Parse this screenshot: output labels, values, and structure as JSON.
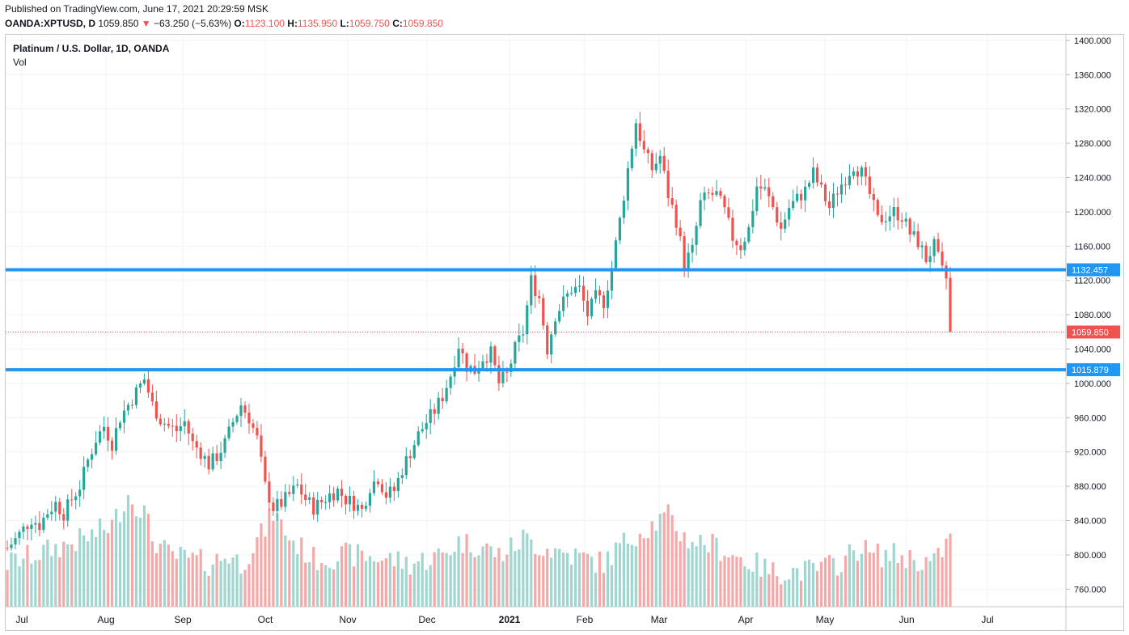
{
  "header": {
    "published": "Published on TradingView.com, June 17, 2021 20:29:59 MSK",
    "symbol": "OANDA:XPTUSD, D",
    "last": "1059.850",
    "change": "−63.250 (−5.63%)",
    "o_label": "O:",
    "o_value": "1123.100",
    "h_label": "H:",
    "h_value": "1135.950",
    "l_label": "L:",
    "l_value": "1059.750",
    "c_label": "C:",
    "c_value": "1059.850"
  },
  "legend": {
    "title": "Platinum / U.S. Dollar, 1D, OANDA",
    "vol": "Vol"
  },
  "colors": {
    "up": "#26a69a",
    "down": "#ef5350",
    "up_vol": "#9fd6cf",
    "down_vol": "#f4a9a8",
    "hline": "#2196f3",
    "grid": "#f0f3fa"
  },
  "chart_data": {
    "type": "candlestick",
    "ylim": [
      740,
      1405
    ],
    "y_ticks": [
      "1400.000",
      "1360.000",
      "1320.000",
      "1280.000",
      "1240.000",
      "1200.000",
      "1160.000",
      "1120.000",
      "1080.000",
      "1040.000",
      "1000.000",
      "960.000",
      "920.000",
      "880.000",
      "840.000",
      "800.000",
      "760.000"
    ],
    "x_ticks": [
      "Jul",
      "Aug",
      "Sep",
      "Oct",
      "Nov",
      "Dec",
      "2021",
      "Feb",
      "Mar",
      "Apr",
      "May",
      "Jun",
      "Jul"
    ],
    "horizontal_lines": [
      {
        "value": 1132.457,
        "label": "1132.457"
      },
      {
        "value": 1015.879,
        "label": "1015.879"
      }
    ],
    "last_price": {
      "value": 1059.85,
      "label": "1059.850"
    },
    "price_path": [
      [
        0,
        808
      ],
      [
        2,
        818
      ],
      [
        4,
        830
      ],
      [
        6,
        842
      ],
      [
        8,
        835
      ],
      [
        10,
        850
      ],
      [
        12,
        860
      ],
      [
        14,
        848
      ],
      [
        16,
        865
      ],
      [
        18,
        880
      ],
      [
        20,
        910
      ],
      [
        22,
        935
      ],
      [
        24,
        950
      ],
      [
        26,
        930
      ],
      [
        28,
        960
      ],
      [
        30,
        975
      ],
      [
        32,
        990
      ],
      [
        34,
        1005
      ],
      [
        36,
        975
      ],
      [
        38,
        958
      ],
      [
        40,
        950
      ],
      [
        42,
        945
      ],
      [
        44,
        955
      ],
      [
        46,
        930
      ],
      [
        48,
        920
      ],
      [
        50,
        905
      ],
      [
        52,
        915
      ],
      [
        54,
        930
      ],
      [
        56,
        955
      ],
      [
        58,
        975
      ],
      [
        60,
        960
      ],
      [
        62,
        935
      ],
      [
        64,
        880
      ],
      [
        66,
        855
      ],
      [
        68,
        860
      ],
      [
        70,
        870
      ],
      [
        72,
        880
      ],
      [
        74,
        865
      ],
      [
        76,
        855
      ],
      [
        78,
        862
      ],
      [
        80,
        870
      ],
      [
        82,
        875
      ],
      [
        84,
        865
      ],
      [
        86,
        860
      ],
      [
        88,
        852
      ],
      [
        90,
        880
      ],
      [
        92,
        890
      ],
      [
        94,
        870
      ],
      [
        96,
        875
      ],
      [
        98,
        900
      ],
      [
        100,
        920
      ],
      [
        102,
        940
      ],
      [
        104,
        955
      ],
      [
        106,
        968
      ],
      [
        108,
        985
      ],
      [
        110,
        1010
      ],
      [
        112,
        1045
      ],
      [
        114,
        1020
      ],
      [
        116,
        1015
      ],
      [
        118,
        1030
      ],
      [
        120,
        1035
      ],
      [
        122,
        1000
      ],
      [
        124,
        1010
      ],
      [
        126,
        1040
      ],
      [
        128,
        1060
      ],
      [
        130,
        1120
      ],
      [
        132,
        1100
      ],
      [
        134,
        1040
      ],
      [
        136,
        1080
      ],
      [
        138,
        1095
      ],
      [
        140,
        1110
      ],
      [
        142,
        1110
      ],
      [
        144,
        1080
      ],
      [
        146,
        1100
      ],
      [
        148,
        1095
      ],
      [
        150,
        1135
      ],
      [
        152,
        1190
      ],
      [
        154,
        1250
      ],
      [
        156,
        1305
      ],
      [
        158,
        1270
      ],
      [
        160,
        1250
      ],
      [
        162,
        1265
      ],
      [
        164,
        1220
      ],
      [
        166,
        1190
      ],
      [
        168,
        1140
      ],
      [
        170,
        1155
      ],
      [
        172,
        1210
      ],
      [
        174,
        1220
      ],
      [
        176,
        1220
      ],
      [
        178,
        1200
      ],
      [
        180,
        1170
      ],
      [
        182,
        1160
      ],
      [
        184,
        1180
      ],
      [
        186,
        1230
      ],
      [
        188,
        1225
      ],
      [
        190,
        1205
      ],
      [
        192,
        1180
      ],
      [
        194,
        1205
      ],
      [
        196,
        1215
      ],
      [
        198,
        1225
      ],
      [
        200,
        1245
      ],
      [
        202,
        1225
      ],
      [
        204,
        1205
      ],
      [
        206,
        1225
      ],
      [
        208,
        1240
      ],
      [
        210,
        1255
      ],
      [
        212,
        1245
      ],
      [
        214,
        1220
      ],
      [
        216,
        1190
      ],
      [
        218,
        1195
      ],
      [
        220,
        1200
      ],
      [
        222,
        1195
      ],
      [
        224,
        1175
      ],
      [
        226,
        1165
      ],
      [
        228,
        1145
      ],
      [
        230,
        1160
      ],
      [
        232,
        1130
      ],
      [
        233,
        1122
      ],
      [
        234,
        1060
      ]
    ],
    "volume_path": [
      [
        0,
        790
      ],
      [
        10,
        805
      ],
      [
        20,
        820
      ],
      [
        26,
        835
      ],
      [
        30,
        870
      ],
      [
        34,
        850
      ],
      [
        36,
        820
      ],
      [
        40,
        800
      ],
      [
        50,
        790
      ],
      [
        55,
        800
      ],
      [
        58,
        790
      ],
      [
        64,
        830
      ],
      [
        66,
        850
      ],
      [
        70,
        820
      ],
      [
        76,
        795
      ],
      [
        85,
        800
      ],
      [
        95,
        795
      ],
      [
        100,
        790
      ],
      [
        108,
        800
      ],
      [
        112,
        815
      ],
      [
        118,
        810
      ],
      [
        122,
        800
      ],
      [
        126,
        810
      ],
      [
        128,
        820
      ],
      [
        132,
        810
      ],
      [
        140,
        800
      ],
      [
        148,
        790
      ],
      [
        152,
        810
      ],
      [
        156,
        825
      ],
      [
        160,
        835
      ],
      [
        164,
        845
      ],
      [
        168,
        820
      ],
      [
        172,
        815
      ],
      [
        176,
        810
      ],
      [
        180,
        800
      ],
      [
        185,
        790
      ],
      [
        190,
        780
      ],
      [
        200,
        782
      ],
      [
        205,
        788
      ],
      [
        208,
        795
      ],
      [
        210,
        805
      ],
      [
        212,
        810
      ],
      [
        214,
        800
      ],
      [
        220,
        800
      ],
      [
        225,
        795
      ],
      [
        230,
        790
      ],
      [
        234,
        820
      ]
    ],
    "n_candles": 235
  },
  "axis": {
    "x_positions_note": "month ticks"
  }
}
